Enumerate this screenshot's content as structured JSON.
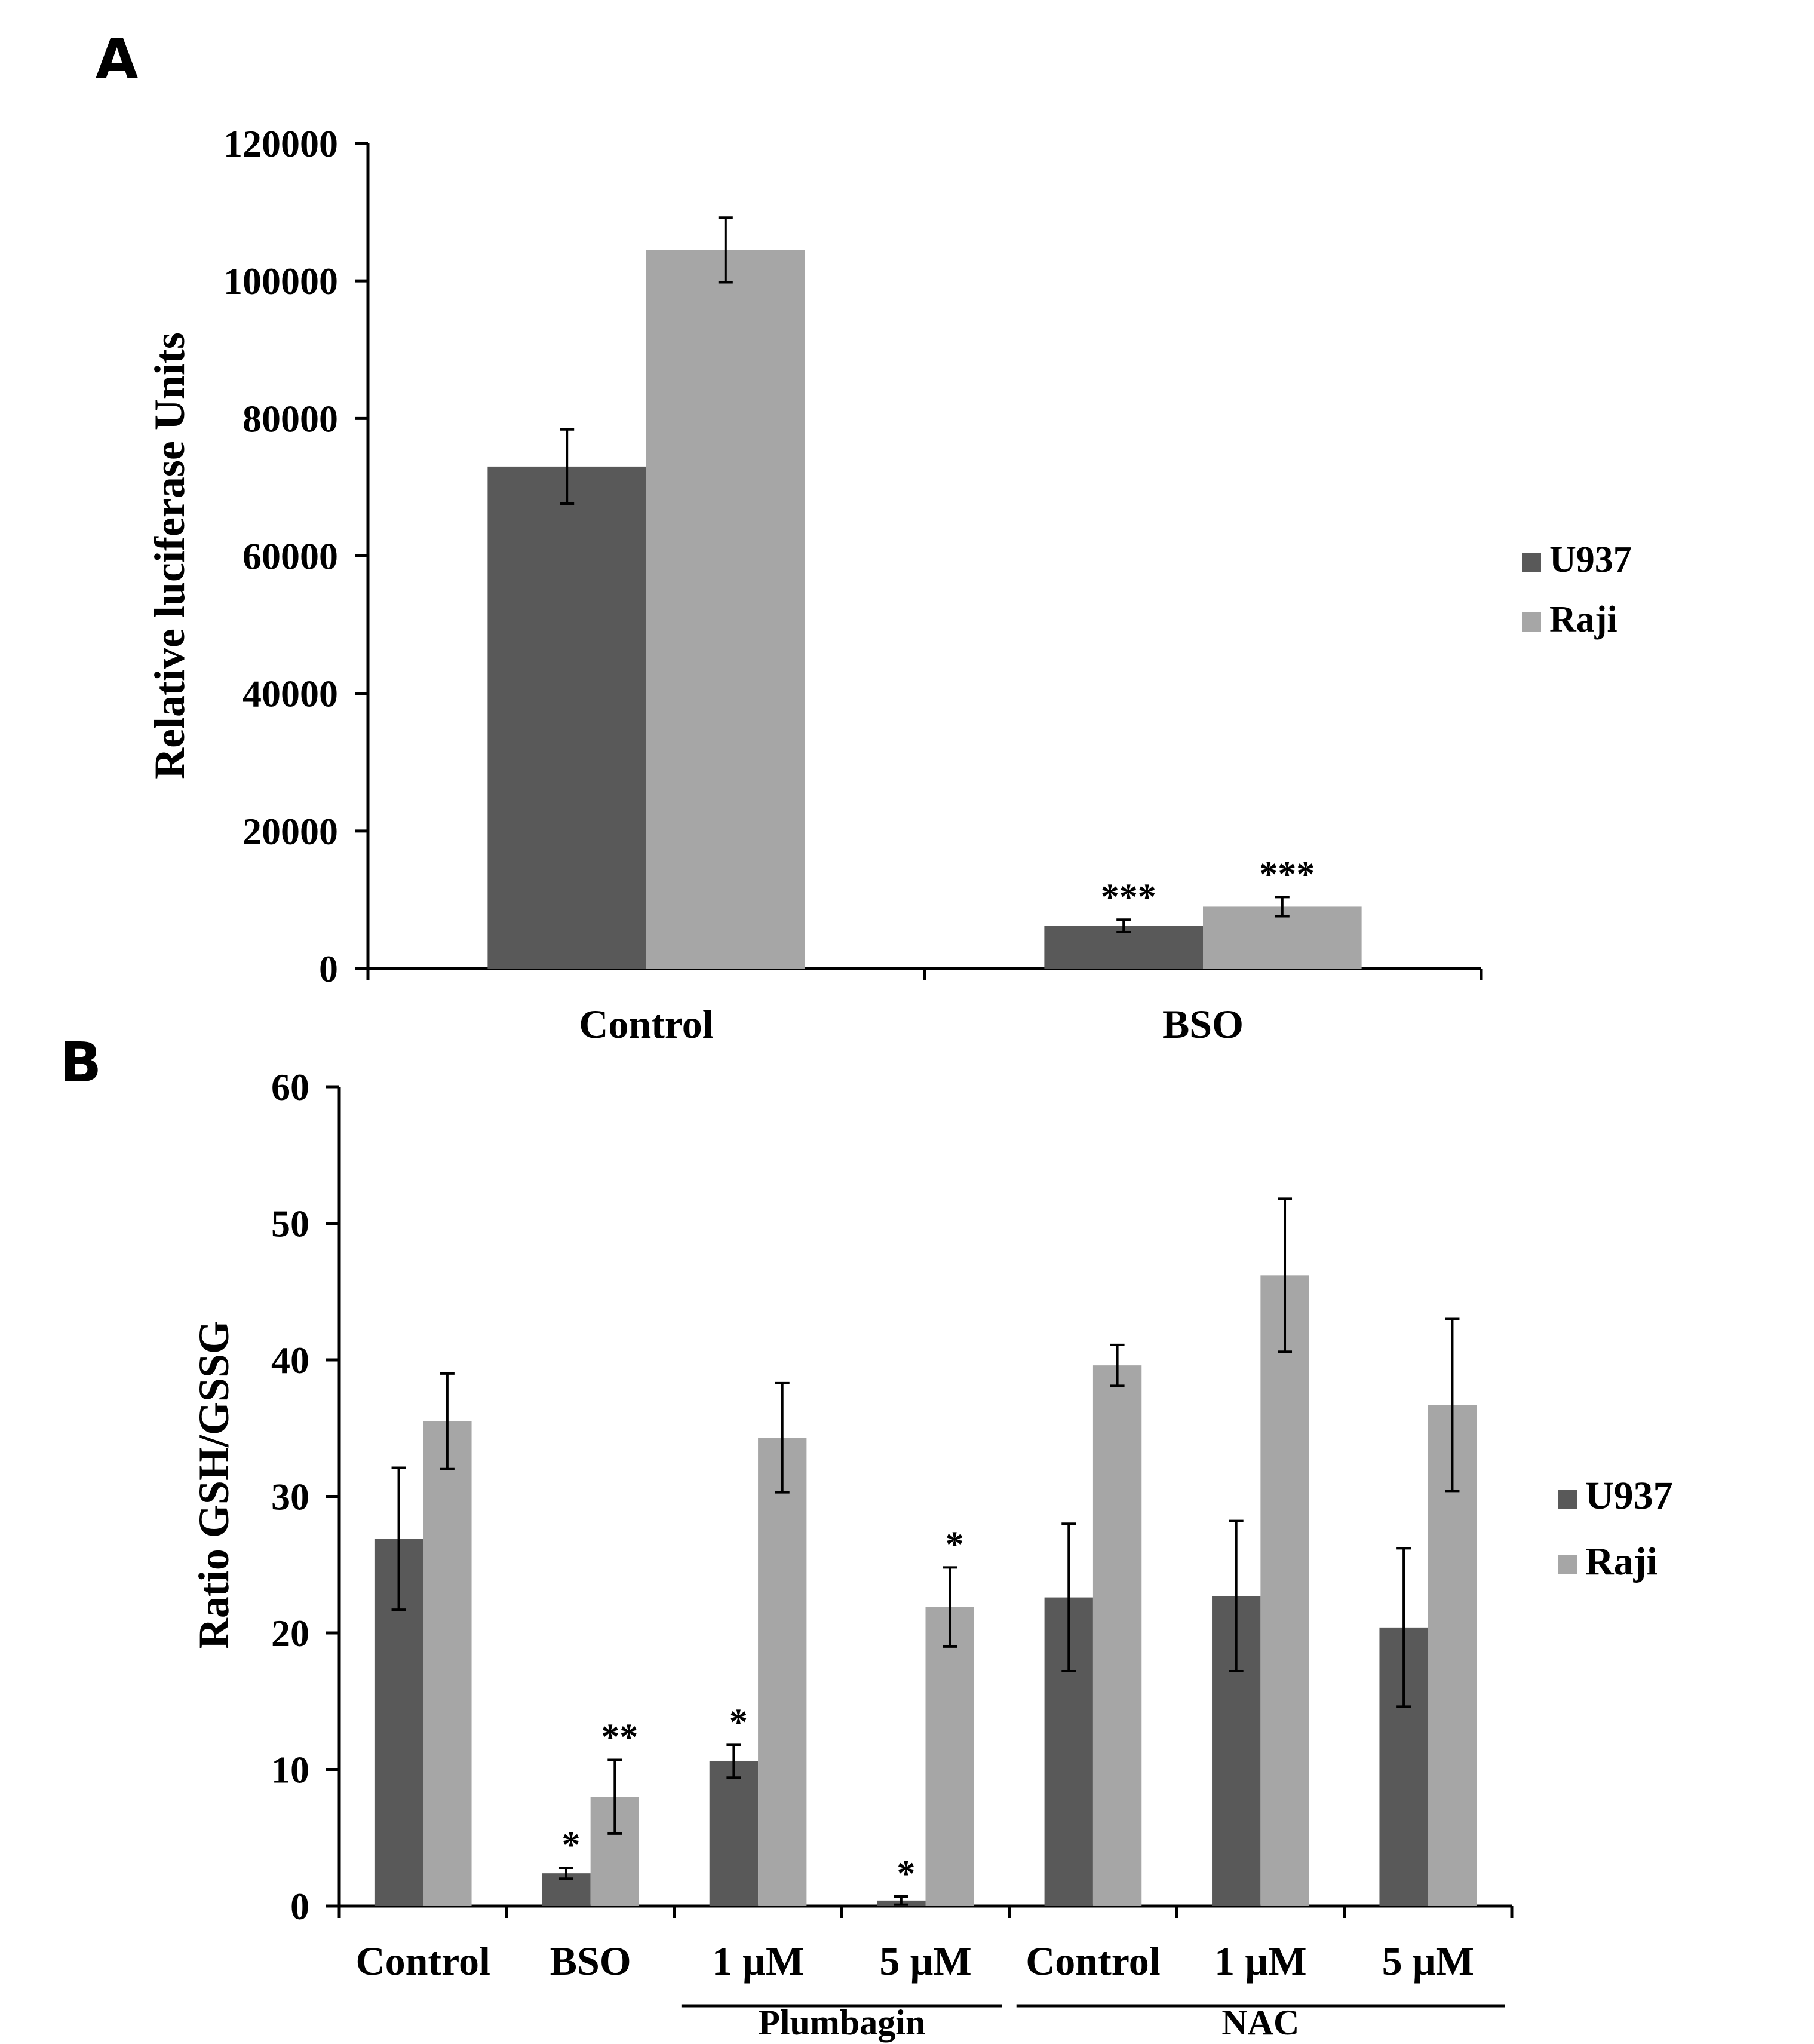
{
  "colors": {
    "u937": "#595959",
    "raji": "#a6a6a6",
    "axis": "#000000"
  },
  "chart_data": [
    {
      "panel": "A⃿",
      "type": "bar",
      "ylabel": "Relative luciferase Units",
      "xlabel": "",
      "ylim": [
        0,
        120000
      ],
      "yticks": [
        0,
        20000,
        40000,
        60000,
        80000,
        100000,
        120000
      ],
      "ytick_labels": [
        "0",
        "20000",
        "40000",
        "60000",
        "80000",
        "100000",
        "120000"
      ],
      "categories": [
        "Control",
        "BSO"
      ],
      "series": [
        {
          "name": "U937",
          "values": [
            73000,
            6200
          ],
          "errors": [
            5400,
            900
          ],
          "annotations": [
            "",
            "***⃿"
          ]
        },
        {
          "name": "Raji",
          "values": [
            104500,
            9000
          ],
          "errors": [
            4700,
            1400
          ],
          "annotations": [
            "",
            "***⃿"
          ]
        }
      ],
      "legend": {
        "placement": "right",
        "entries": [
          "U937",
          "Raji"
        ]
      }
    },
    {
      "panel": "B⃿",
      "type": "bar",
      "ylabel": "Ratio GSH/GSSG",
      "xlabel": "",
      "ylim": [
        0,
        60
      ],
      "yticks": [
        0,
        10,
        20,
        30,
        40,
        50,
        60
      ],
      "ytick_labels": [
        "0",
        "10",
        "20",
        "30",
        "40",
        "50",
        "60"
      ],
      "categories": [
        "Control",
        "BSO",
        "1 µM",
        "5 µM",
        "Control",
        "1 µM",
        "5 µM"
      ],
      "series": [
        {
          "name": "U937",
          "values": [
            26.9,
            2.4,
            10.6,
            0.4,
            22.6,
            22.7,
            20.4
          ],
          "errors": [
            5.2,
            0.4,
            1.2,
            0.3,
            5.4,
            5.5,
            5.8
          ],
          "annotations": [
            "",
            "*⃿",
            "*⃿",
            "*⃿",
            "",
            "",
            ""
          ]
        },
        {
          "name": "Raji",
          "values": [
            35.5,
            8.0,
            34.3,
            21.9,
            39.6,
            46.2,
            36.7
          ],
          "errors": [
            3.5,
            2.7,
            4.0,
            2.9,
            1.5,
            5.6,
            6.3
          ],
          "annotations": [
            "",
            "**⃿",
            "",
            "*⃿",
            "",
            "",
            ""
          ]
        }
      ],
      "groups": [
        {
          "label": "Plumbagin",
          "from": 2,
          "to": 3
        },
        {
          "label": "NAC",
          "from": 4,
          "to": 6
        }
      ],
      "legend": {
        "placement": "right",
        "entries": [
          "U937",
          "Raji"
        ]
      }
    }
  ]
}
